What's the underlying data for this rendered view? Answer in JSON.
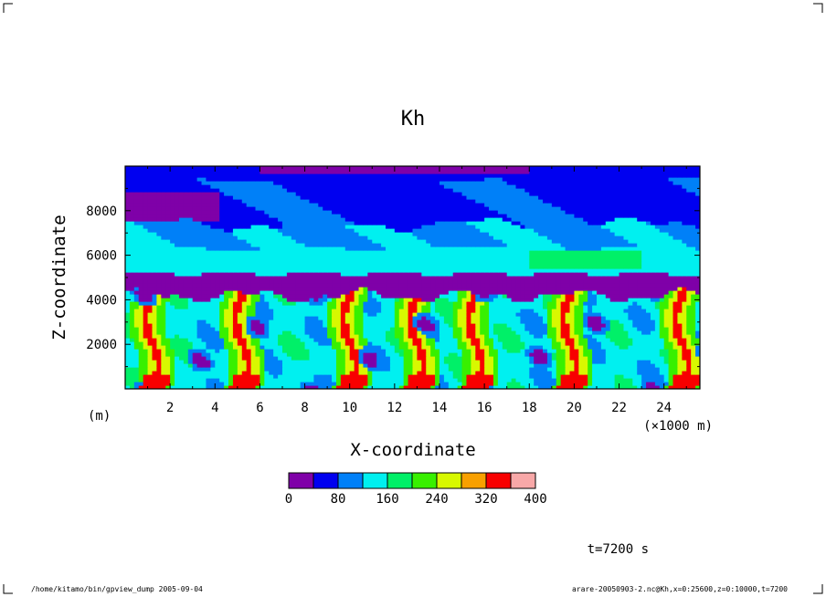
{
  "chart_data": {
    "type": "heatmap",
    "title": "Kh",
    "xlabel": "X-coordinate",
    "ylabel": "Z-coordinate",
    "x_unit": "(×1000 m)",
    "y_unit": "(m)",
    "xlim": [
      0,
      25.6
    ],
    "ylim": [
      0,
      10000
    ],
    "x_ticks": [
      2,
      4,
      6,
      8,
      10,
      12,
      14,
      16,
      18,
      20,
      22,
      24
    ],
    "x_tick_labels": [
      "2",
      "4",
      "6",
      "8",
      "10",
      "12",
      "14",
      "16",
      "18",
      "20",
      "22",
      "24"
    ],
    "y_ticks": [
      2000,
      4000,
      6000,
      8000
    ],
    "y_tick_labels": [
      "2000",
      "4000",
      "6000",
      "8000"
    ],
    "time_label": "t=7200 s",
    "colorbar": {
      "levels": [
        0,
        40,
        80,
        120,
        160,
        200,
        240,
        280,
        320,
        360,
        400
      ],
      "tick_labels": [
        "0",
        "80",
        "160",
        "240",
        "320",
        "400"
      ],
      "colors": [
        "#7f00a8",
        "#0000f0",
        "#0080f8",
        "#00f0f0",
        "#00f068",
        "#38f000",
        "#d8f800",
        "#f8a000",
        "#f80000",
        "#f8a8a8"
      ]
    },
    "field_features": {
      "inversion_top_z": 5200,
      "inversion_bottom_z": 4200,
      "plume_centers_x": [
        1.2,
        5.2,
        10.0,
        13.0,
        15.6,
        19.8,
        24.8
      ],
      "regions": [
        {
          "z_range": [
            9400,
            10000
          ],
          "value": 60
        },
        {
          "z_range": [
            7400,
            9400
          ],
          "value": 50
        },
        {
          "z_range": [
            6300,
            7400
          ],
          "value": 100
        },
        {
          "z_range": [
            5200,
            6300
          ],
          "value": 130
        },
        {
          "z_range": [
            4200,
            5200
          ],
          "value": 10
        },
        {
          "z_range": [
            0,
            4200
          ],
          "value": 140
        }
      ]
    }
  },
  "footer": {
    "left": "/home/kitamo/bin/gpview_dump  2005-09-04",
    "right": "arare-20050903-2.nc@Kh,x=0:25600,z=0:10000,t=7200"
  }
}
